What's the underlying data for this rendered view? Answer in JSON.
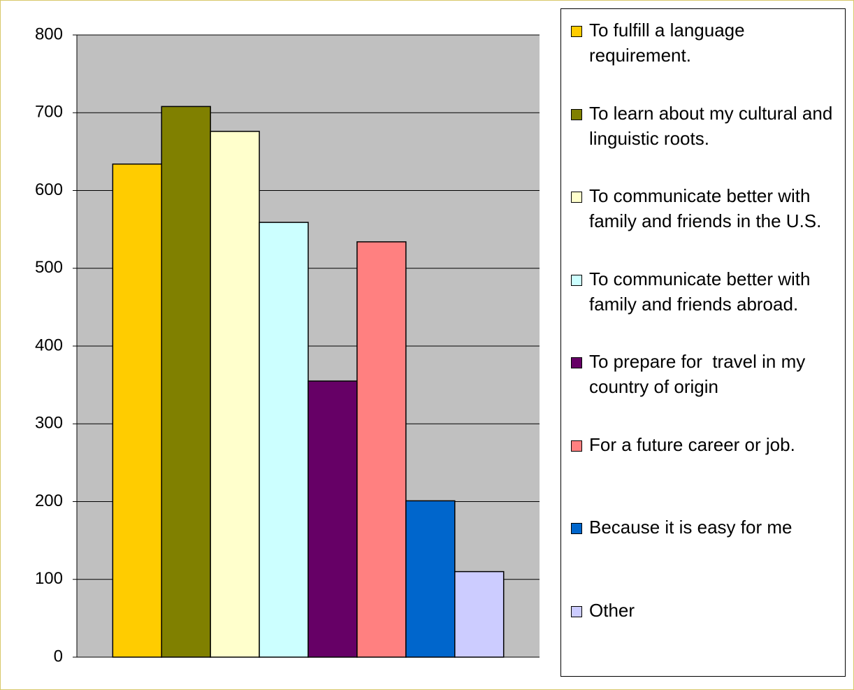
{
  "chart_data": {
    "type": "bar",
    "categories": [
      null
    ],
    "series": [
      {
        "name": "To fulfill a language requirement.",
        "color": "#ffcc00",
        "values": [
          634
        ]
      },
      {
        "name": "To learn about my cultural and linguistic roots.",
        "color": "#808000",
        "values": [
          708
        ]
      },
      {
        "name": "To communicate better with family and friends in the U.S.",
        "color": "#ffffcc",
        "values": [
          676
        ]
      },
      {
        "name": "To communicate better with family and friends abroad.",
        "color": "#ccffff",
        "values": [
          559
        ]
      },
      {
        "name": "To prepare for  travel in my country of origin",
        "color": "#660066",
        "values": [
          355
        ]
      },
      {
        "name": "For a future career or job.",
        "color": "#ff8080",
        "values": [
          534
        ]
      },
      {
        "name": "Because it is easy for me",
        "color": "#0066cc",
        "values": [
          201
        ]
      },
      {
        "name": "Other",
        "color": "#ccccff",
        "values": [
          110
        ]
      }
    ],
    "ylim": [
      0,
      800
    ],
    "yticks": [
      0,
      100,
      200,
      300,
      400,
      500,
      600,
      700,
      800
    ],
    "grid": true,
    "legend": "right"
  }
}
